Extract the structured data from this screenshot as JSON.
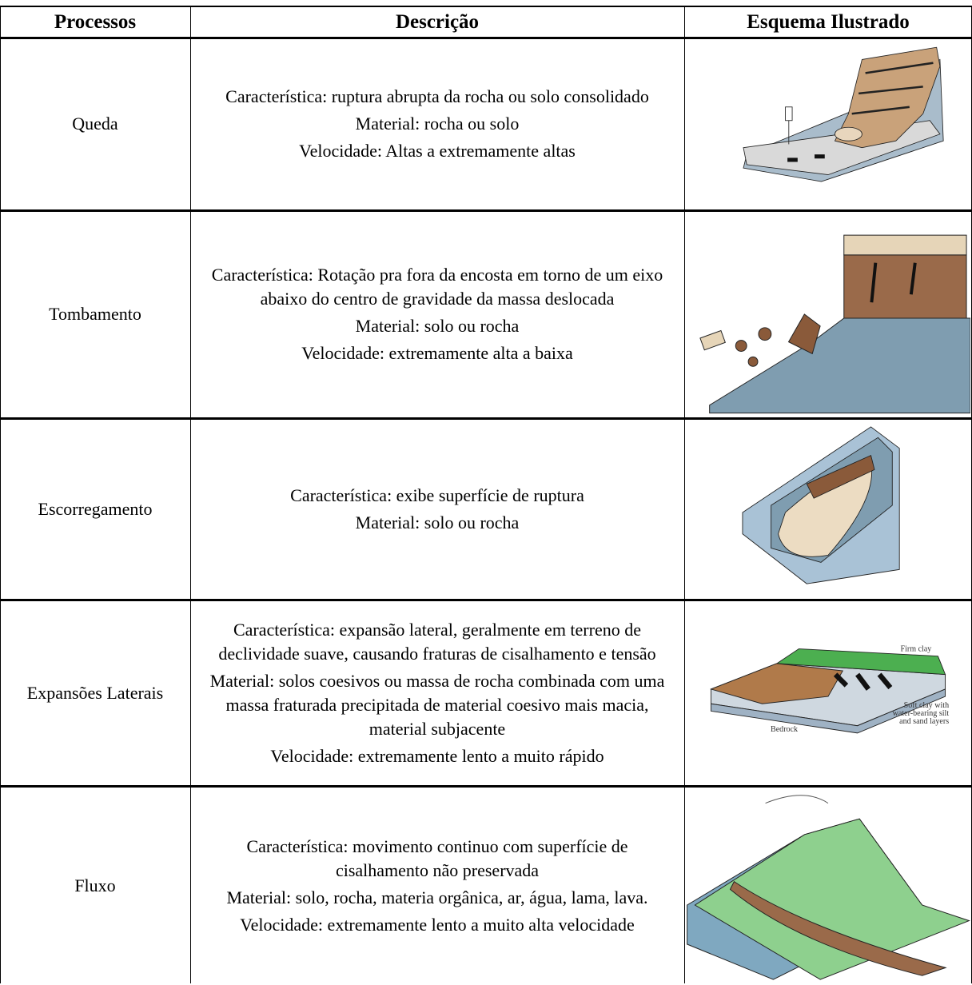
{
  "header": {
    "process": "Processos",
    "description": "Descrição",
    "illustration": "Esquema Ilustrado"
  },
  "rows": [
    {
      "process": "Queda",
      "description": [
        "Característica: ruptura abrupta da rocha ou solo consolidado",
        "Material: rocha ou solo",
        "Velocidade: Altas a extremamente altas"
      ]
    },
    {
      "process": "Tombamento",
      "description": [
        "Característica: Rotação pra fora da encosta em torno de um eixo abaixo do centro de gravidade da massa deslocada",
        "Material: solo ou rocha",
        "Velocidade: extremamente alta a baixa"
      ]
    },
    {
      "process": "Escorregamento",
      "description": [
        "Característica: exibe superfície de ruptura",
        "Material: solo ou rocha"
      ]
    },
    {
      "process": "Expansões Laterais",
      "description": [
        "Característica: expansão lateral, geralmente em terreno de declividade suave, causando fraturas de cisalhamento e tensão",
        "Material: solos coesivos ou massa de rocha combinada com uma massa fraturada precipitada de material coesivo mais macia, material subjacente",
        "Velocidade: extremamente lento a muito rápido"
      ],
      "illustration_labels": {
        "top": "Firm clay",
        "side": [
          "Soft clay with",
          "water-bearing silt",
          "and sand layers"
        ],
        "bottom": "Bedrock"
      }
    },
    {
      "process": "Fluxo",
      "description": [
        "Característica: movimento continuo com superfície de cisalhamento não preservada",
        "Material: solo, rocha, materia orgânica, ar, água, lama, lava.",
        "Velocidade: extremamente lento a muito alta velocidade"
      ]
    }
  ]
}
